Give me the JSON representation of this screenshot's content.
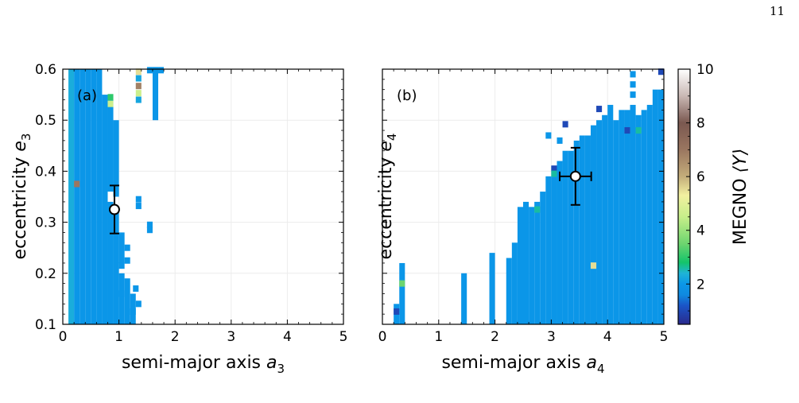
{
  "page": {
    "number": "11"
  },
  "chart_data": [
    {
      "type": "heatmap",
      "panel_label": "(a)",
      "xlabel": {
        "prefix": "semi-major axis ",
        "var": "a",
        "sub": "3"
      },
      "ylabel": {
        "prefix": "eccentricity ",
        "var": "e",
        "sub": "3"
      },
      "xlim": [
        0,
        5
      ],
      "ylim": [
        0.1,
        0.6
      ],
      "x_ticks": [
        0,
        1,
        2,
        3,
        4,
        5
      ],
      "y_ticks": [
        0.1,
        0.2,
        0.3,
        0.4,
        0.5,
        0.6
      ],
      "y_tick_labels_shown": true,
      "grid": true,
      "cell_dx": 0.1,
      "cell_dy": 0.0125,
      "cells_columns": [
        {
          "x": 0.1,
          "y0": 0.1,
          "y1": 0.6,
          "v": 2.3
        },
        {
          "x": 0.2,
          "y0": 0.1,
          "y1": 0.6,
          "v": 2.0
        },
        {
          "x": 0.3,
          "y0": 0.1,
          "y1": 0.6,
          "v": 2.0
        },
        {
          "x": 0.4,
          "y0": 0.1,
          "y1": 0.6,
          "v": 2.0
        },
        {
          "x": 0.5,
          "y0": 0.1,
          "y1": 0.6,
          "v": 2.0
        },
        {
          "x": 0.6,
          "y0": 0.1,
          "y1": 0.6,
          "v": 2.0
        },
        {
          "x": 0.7,
          "y0": 0.1,
          "y1": 0.55,
          "v": 2.0
        },
        {
          "x": 0.8,
          "y0": 0.1,
          "y1": 0.34,
          "v": 2.0
        },
        {
          "x": 0.8,
          "y0": 0.36,
          "y1": 0.54,
          "v": 2.0
        },
        {
          "x": 0.9,
          "y0": 0.1,
          "y1": 0.33,
          "v": 2.0
        },
        {
          "x": 0.9,
          "y0": 0.35,
          "y1": 0.5,
          "v": 2.0
        },
        {
          "x": 1.0,
          "y0": 0.1,
          "y1": 0.2,
          "v": 2.0
        },
        {
          "x": 1.0,
          "y0": 0.22,
          "y1": 0.28,
          "v": 2.0
        },
        {
          "x": 1.1,
          "y0": 0.1,
          "y1": 0.19,
          "v": 2.0
        },
        {
          "x": 1.2,
          "y0": 0.1,
          "y1": 0.16,
          "v": 2.0
        },
        {
          "x": 1.6,
          "y0": 0.5,
          "y1": 0.6,
          "v": 2.0
        }
      ],
      "cells": [
        {
          "x": 0.25,
          "y": 0.375,
          "v": 7.0
        },
        {
          "x": 0.85,
          "y": 0.545,
          "v": 3.0
        },
        {
          "x": 0.85,
          "y": 0.532,
          "v": 4.6
        },
        {
          "x": 1.35,
          "y": 0.595,
          "v": 5.5
        },
        {
          "x": 1.35,
          "y": 0.582,
          "v": 2.2
        },
        {
          "x": 1.35,
          "y": 0.567,
          "v": 6.8
        },
        {
          "x": 1.35,
          "y": 0.553,
          "v": 4.6
        },
        {
          "x": 1.35,
          "y": 0.54,
          "v": 2.2
        },
        {
          "x": 1.35,
          "y": 0.345,
          "v": 2.0
        },
        {
          "x": 1.35,
          "y": 0.332,
          "v": 2.0
        },
        {
          "x": 1.35,
          "y": 0.14,
          "v": 2.0
        },
        {
          "x": 1.3,
          "y": 0.17,
          "v": 2.0
        },
        {
          "x": 1.55,
          "y": 0.295,
          "v": 2.0
        },
        {
          "x": 1.55,
          "y": 0.285,
          "v": 2.0
        },
        {
          "x": 1.55,
          "y": 0.598,
          "v": 2.0
        },
        {
          "x": 1.65,
          "y": 0.598,
          "v": 2.0
        },
        {
          "x": 1.75,
          "y": 0.598,
          "v": 2.0
        },
        {
          "x": 1.05,
          "y": 0.215,
          "v": 2.0
        },
        {
          "x": 1.15,
          "y": 0.225,
          "v": 2.0
        },
        {
          "x": 1.15,
          "y": 0.25,
          "v": 2.0
        },
        {
          "x": 1.05,
          "y": 0.16,
          "v": 2.0
        },
        {
          "x": 1.25,
          "y": 0.125,
          "v": 2.0
        },
        {
          "x": 0.95,
          "y": 0.36,
          "v": 2.0
        }
      ],
      "planet": {
        "x": 0.92,
        "y": 0.325,
        "xerr": 0.0,
        "yerr": 0.047
      }
    },
    {
      "type": "heatmap",
      "panel_label": "(b)",
      "xlabel": {
        "prefix": "semi-major axis ",
        "var": "a",
        "sub": "4"
      },
      "ylabel": {
        "prefix": "eccentricity ",
        "var": "e",
        "sub": "4"
      },
      "xlim": [
        0,
        5
      ],
      "ylim": [
        0.1,
        0.6
      ],
      "x_ticks": [
        0,
        1,
        2,
        3,
        4,
        5
      ],
      "y_ticks": [
        0.1,
        0.2,
        0.3,
        0.4,
        0.5,
        0.6
      ],
      "y_tick_labels_shown": false,
      "grid": true,
      "cell_dx": 0.1,
      "cell_dy": 0.0125,
      "cells_columns": [
        {
          "x": 0.2,
          "y0": 0.1,
          "y1": 0.14,
          "v": 2.0
        },
        {
          "x": 0.3,
          "y0": 0.1,
          "y1": 0.22,
          "v": 2.0
        },
        {
          "x": 1.4,
          "y0": 0.1,
          "y1": 0.2,
          "v": 2.0
        },
        {
          "x": 1.9,
          "y0": 0.1,
          "y1": 0.24,
          "v": 2.0
        },
        {
          "x": 2.2,
          "y0": 0.1,
          "y1": 0.23,
          "v": 2.0
        },
        {
          "x": 2.3,
          "y0": 0.1,
          "y1": 0.26,
          "v": 2.0
        },
        {
          "x": 2.4,
          "y0": 0.1,
          "y1": 0.33,
          "v": 2.0
        },
        {
          "x": 2.5,
          "y0": 0.1,
          "y1": 0.34,
          "v": 2.0
        },
        {
          "x": 2.6,
          "y0": 0.1,
          "y1": 0.33,
          "v": 2.0
        },
        {
          "x": 2.7,
          "y0": 0.1,
          "y1": 0.34,
          "v": 2.0
        },
        {
          "x": 2.8,
          "y0": 0.1,
          "y1": 0.36,
          "v": 2.0
        },
        {
          "x": 2.9,
          "y0": 0.1,
          "y1": 0.39,
          "v": 2.0
        },
        {
          "x": 3.0,
          "y0": 0.1,
          "y1": 0.41,
          "v": 2.0
        },
        {
          "x": 3.1,
          "y0": 0.1,
          "y1": 0.42,
          "v": 2.0
        },
        {
          "x": 3.2,
          "y0": 0.1,
          "y1": 0.44,
          "v": 2.0
        },
        {
          "x": 3.3,
          "y0": 0.1,
          "y1": 0.44,
          "v": 2.0
        },
        {
          "x": 3.4,
          "y0": 0.1,
          "y1": 0.46,
          "v": 2.0
        },
        {
          "x": 3.5,
          "y0": 0.1,
          "y1": 0.47,
          "v": 2.0
        },
        {
          "x": 3.6,
          "y0": 0.1,
          "y1": 0.47,
          "v": 2.0
        },
        {
          "x": 3.7,
          "y0": 0.1,
          "y1": 0.49,
          "v": 2.0
        },
        {
          "x": 3.8,
          "y0": 0.1,
          "y1": 0.5,
          "v": 2.0
        },
        {
          "x": 3.9,
          "y0": 0.1,
          "y1": 0.51,
          "v": 2.0
        },
        {
          "x": 4.0,
          "y0": 0.1,
          "y1": 0.53,
          "v": 2.0
        },
        {
          "x": 4.1,
          "y0": 0.1,
          "y1": 0.5,
          "v": 2.0
        },
        {
          "x": 4.2,
          "y0": 0.1,
          "y1": 0.52,
          "v": 2.0
        },
        {
          "x": 4.3,
          "y0": 0.1,
          "y1": 0.52,
          "v": 2.0
        },
        {
          "x": 4.4,
          "y0": 0.1,
          "y1": 0.53,
          "v": 2.0
        },
        {
          "x": 4.5,
          "y0": 0.1,
          "y1": 0.51,
          "v": 2.0
        },
        {
          "x": 4.6,
          "y0": 0.1,
          "y1": 0.52,
          "v": 2.0
        },
        {
          "x": 4.7,
          "y0": 0.1,
          "y1": 0.53,
          "v": 2.0
        },
        {
          "x": 4.8,
          "y0": 0.1,
          "y1": 0.56,
          "v": 2.0
        },
        {
          "x": 4.9,
          "y0": 0.1,
          "y1": 0.56,
          "v": 2.0
        }
      ],
      "cells": [
        {
          "x": 0.25,
          "y": 0.125,
          "v": 1.0
        },
        {
          "x": 0.35,
          "y": 0.18,
          "v": 3.5
        },
        {
          "x": 4.95,
          "y": 0.595,
          "v": 1.0
        },
        {
          "x": 4.45,
          "y": 0.59,
          "v": 2.0
        },
        {
          "x": 4.45,
          "y": 0.57,
          "v": 2.0
        },
        {
          "x": 4.45,
          "y": 0.55,
          "v": 2.0
        },
        {
          "x": 3.85,
          "y": 0.522,
          "v": 1.0
        },
        {
          "x": 3.25,
          "y": 0.492,
          "v": 1.0
        },
        {
          "x": 3.05,
          "y": 0.405,
          "v": 1.0
        },
        {
          "x": 3.05,
          "y": 0.395,
          "v": 2.6
        },
        {
          "x": 2.75,
          "y": 0.325,
          "v": 2.6
        },
        {
          "x": 3.75,
          "y": 0.215,
          "v": 5.5
        },
        {
          "x": 4.55,
          "y": 0.48,
          "v": 2.6
        },
        {
          "x": 4.35,
          "y": 0.48,
          "v": 1.0
        },
        {
          "x": 2.95,
          "y": 0.47,
          "v": 2.0
        },
        {
          "x": 3.15,
          "y": 0.46,
          "v": 2.0
        }
      ],
      "planet": {
        "x": 3.43,
        "y": 0.39,
        "xerr": 0.28,
        "yerr": 0.056
      }
    }
  ],
  "colorbar": {
    "label": "MEGNO ⟨Y⟩",
    "label_main": "MEGNO ",
    "label_var": "⟨Y⟩",
    "vmin": 0.5,
    "vmax": 10,
    "ticks": [
      2,
      4,
      6,
      8,
      10
    ],
    "colormap": "terrain",
    "stops": [
      [
        0.5,
        "#2a2a8c"
      ],
      [
        1.2,
        "#1a55c8"
      ],
      [
        1.6,
        "#0f8ae0"
      ],
      [
        2.0,
        "#0b96e8"
      ],
      [
        2.4,
        "#1fb4d6"
      ],
      [
        2.8,
        "#14c46a"
      ],
      [
        3.5,
        "#6dd56f"
      ],
      [
        4.5,
        "#c7ef8a"
      ],
      [
        5.3,
        "#f2f0a0"
      ],
      [
        6.0,
        "#c4ad7a"
      ],
      [
        7.0,
        "#9a7660"
      ],
      [
        8.0,
        "#7a5850"
      ],
      [
        9.0,
        "#c9b8b4"
      ],
      [
        10.0,
        "#ffffff"
      ]
    ]
  }
}
